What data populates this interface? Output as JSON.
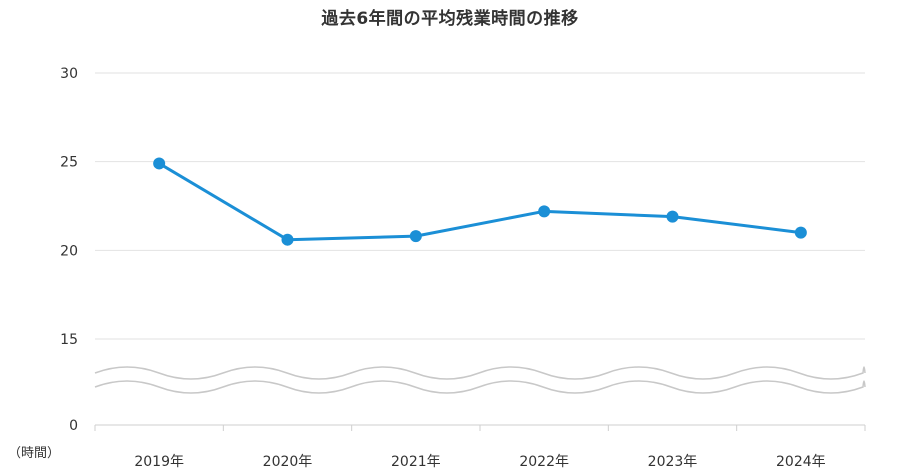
{
  "chart_data": {
    "type": "line",
    "title": "過去6年間の平均残業時間の推移",
    "ylabel": "（時間）",
    "xlabel": "",
    "categories": [
      "2019年",
      "2020年",
      "2021年",
      "2022年",
      "2023年",
      "2024年"
    ],
    "series": [
      {
        "values": [
          24.9,
          20.6,
          20.8,
          22.2,
          21.9,
          21.0
        ]
      }
    ],
    "yticks": [
      "0",
      "15",
      "20",
      "25",
      "30"
    ],
    "ylim": [
      15,
      30
    ],
    "y_axis_break": true,
    "grid": true,
    "line_color": "#1b8fd6"
  }
}
